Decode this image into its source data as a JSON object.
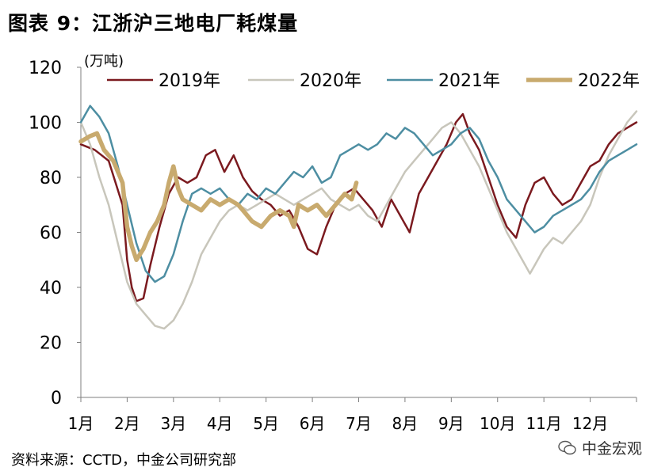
{
  "header": {
    "title": "图表 9：江浙沪三地电厂耗煤量"
  },
  "footer": {
    "source": "资料来源：CCTD，中金公司研究部",
    "watermark": "中金宏观"
  },
  "chart_data": {
    "type": "line",
    "title": "图表 9：江浙沪三地电厂耗煤量",
    "unit_label": "(万吨)",
    "xlabel": "",
    "ylabel": "",
    "ylim": [
      0,
      120
    ],
    "yticks": [
      0,
      20,
      40,
      60,
      80,
      100,
      120
    ],
    "categories": [
      "1月",
      "2月",
      "3月",
      "4月",
      "5月",
      "6月",
      "7月",
      "8月",
      "9月",
      "10月",
      "11月",
      "12月"
    ],
    "legend_position": "top",
    "grid": false,
    "series": [
      {
        "name": "2019年",
        "color": "#7b1a1f",
        "values": [
          [
            0,
            92
          ],
          [
            0.3,
            90
          ],
          [
            0.6,
            86
          ],
          [
            0.9,
            70
          ],
          [
            1.0,
            50
          ],
          [
            1.1,
            40
          ],
          [
            1.2,
            35
          ],
          [
            1.35,
            36
          ],
          [
            1.5,
            48
          ],
          [
            1.7,
            62
          ],
          [
            1.9,
            74
          ],
          [
            2.1,
            80
          ],
          [
            2.3,
            78
          ],
          [
            2.5,
            80
          ],
          [
            2.7,
            88
          ],
          [
            2.9,
            90
          ],
          [
            3.1,
            82
          ],
          [
            3.3,
            88
          ],
          [
            3.5,
            80
          ],
          [
            3.7,
            75
          ],
          [
            3.9,
            72
          ],
          [
            4.1,
            70
          ],
          [
            4.3,
            66
          ],
          [
            4.5,
            68
          ],
          [
            4.7,
            62
          ],
          [
            4.9,
            54
          ],
          [
            5.1,
            52
          ],
          [
            5.3,
            62
          ],
          [
            5.5,
            70
          ],
          [
            5.7,
            74
          ],
          [
            5.9,
            76
          ],
          [
            6.1,
            72
          ],
          [
            6.3,
            68
          ],
          [
            6.5,
            62
          ],
          [
            6.7,
            72
          ],
          [
            6.9,
            66
          ],
          [
            7.1,
            60
          ],
          [
            7.3,
            74
          ],
          [
            7.5,
            80
          ],
          [
            7.7,
            86
          ],
          [
            7.9,
            92
          ],
          [
            8.1,
            100
          ],
          [
            8.25,
            103
          ],
          [
            8.4,
            96
          ],
          [
            8.6,
            90
          ],
          [
            8.8,
            80
          ],
          [
            9.0,
            70
          ],
          [
            9.2,
            62
          ],
          [
            9.4,
            58
          ],
          [
            9.6,
            70
          ],
          [
            9.8,
            78
          ],
          [
            10.0,
            80
          ],
          [
            10.2,
            74
          ],
          [
            10.4,
            70
          ],
          [
            10.6,
            72
          ],
          [
            10.8,
            78
          ],
          [
            11.0,
            84
          ],
          [
            11.2,
            86
          ],
          [
            11.4,
            92
          ],
          [
            11.6,
            96
          ],
          [
            11.8,
            98
          ],
          [
            12.0,
            100
          ]
        ]
      },
      {
        "name": "2020年",
        "color": "#c8c6bb",
        "values": [
          [
            0,
            100
          ],
          [
            0.2,
            92
          ],
          [
            0.4,
            80
          ],
          [
            0.6,
            70
          ],
          [
            0.8,
            56
          ],
          [
            1.0,
            42
          ],
          [
            1.2,
            34
          ],
          [
            1.4,
            30
          ],
          [
            1.6,
            26
          ],
          [
            1.8,
            25
          ],
          [
            2.0,
            28
          ],
          [
            2.2,
            34
          ],
          [
            2.4,
            42
          ],
          [
            2.6,
            52
          ],
          [
            2.8,
            58
          ],
          [
            3.0,
            64
          ],
          [
            3.2,
            68
          ],
          [
            3.4,
            70
          ],
          [
            3.6,
            68
          ],
          [
            3.8,
            70
          ],
          [
            4.0,
            72
          ],
          [
            4.2,
            74
          ],
          [
            4.4,
            72
          ],
          [
            4.6,
            70
          ],
          [
            4.8,
            72
          ],
          [
            5.0,
            74
          ],
          [
            5.2,
            76
          ],
          [
            5.4,
            72
          ],
          [
            5.6,
            70
          ],
          [
            5.8,
            68
          ],
          [
            6.0,
            70
          ],
          [
            6.2,
            66
          ],
          [
            6.4,
            64
          ],
          [
            6.6,
            70
          ],
          [
            6.8,
            76
          ],
          [
            7.0,
            82
          ],
          [
            7.2,
            86
          ],
          [
            7.4,
            90
          ],
          [
            7.6,
            94
          ],
          [
            7.8,
            98
          ],
          [
            8.0,
            100
          ],
          [
            8.2,
            96
          ],
          [
            8.4,
            90
          ],
          [
            8.6,
            84
          ],
          [
            8.8,
            76
          ],
          [
            9.0,
            68
          ],
          [
            9.2,
            60
          ],
          [
            9.4,
            54
          ],
          [
            9.6,
            48
          ],
          [
            9.7,
            45
          ],
          [
            9.8,
            48
          ],
          [
            10.0,
            54
          ],
          [
            10.2,
            58
          ],
          [
            10.4,
            56
          ],
          [
            10.6,
            60
          ],
          [
            10.8,
            64
          ],
          [
            11.0,
            70
          ],
          [
            11.2,
            80
          ],
          [
            11.4,
            88
          ],
          [
            11.6,
            94
          ],
          [
            11.8,
            100
          ],
          [
            12.0,
            104
          ]
        ]
      },
      {
        "name": "2021年",
        "color": "#4d8ea2",
        "values": [
          [
            0,
            100
          ],
          [
            0.2,
            106
          ],
          [
            0.4,
            102
          ],
          [
            0.6,
            96
          ],
          [
            0.8,
            84
          ],
          [
            1.0,
            70
          ],
          [
            1.2,
            56
          ],
          [
            1.4,
            46
          ],
          [
            1.6,
            42
          ],
          [
            1.8,
            44
          ],
          [
            2.0,
            52
          ],
          [
            2.2,
            64
          ],
          [
            2.4,
            74
          ],
          [
            2.6,
            76
          ],
          [
            2.8,
            74
          ],
          [
            3.0,
            76
          ],
          [
            3.2,
            72
          ],
          [
            3.4,
            70
          ],
          [
            3.6,
            74
          ],
          [
            3.8,
            72
          ],
          [
            4.0,
            76
          ],
          [
            4.2,
            74
          ],
          [
            4.4,
            78
          ],
          [
            4.6,
            82
          ],
          [
            4.8,
            80
          ],
          [
            5.0,
            84
          ],
          [
            5.2,
            78
          ],
          [
            5.4,
            80
          ],
          [
            5.6,
            88
          ],
          [
            5.8,
            90
          ],
          [
            6.0,
            92
          ],
          [
            6.2,
            90
          ],
          [
            6.4,
            92
          ],
          [
            6.6,
            96
          ],
          [
            6.8,
            94
          ],
          [
            7.0,
            98
          ],
          [
            7.2,
            96
          ],
          [
            7.4,
            92
          ],
          [
            7.6,
            88
          ],
          [
            7.8,
            90
          ],
          [
            8.0,
            92
          ],
          [
            8.2,
            96
          ],
          [
            8.4,
            98
          ],
          [
            8.6,
            94
          ],
          [
            8.8,
            86
          ],
          [
            9.0,
            80
          ],
          [
            9.2,
            72
          ],
          [
            9.4,
            68
          ],
          [
            9.6,
            64
          ],
          [
            9.8,
            60
          ],
          [
            10.0,
            62
          ],
          [
            10.2,
            66
          ],
          [
            10.4,
            68
          ],
          [
            10.6,
            70
          ],
          [
            10.8,
            72
          ],
          [
            11.0,
            76
          ],
          [
            11.2,
            82
          ],
          [
            11.4,
            86
          ],
          [
            11.6,
            88
          ],
          [
            11.8,
            90
          ],
          [
            12.0,
            92
          ]
        ]
      },
      {
        "name": "2022年",
        "color": "#c8aa6e",
        "values": [
          [
            0,
            93
          ],
          [
            0.2,
            95
          ],
          [
            0.35,
            96
          ],
          [
            0.5,
            90
          ],
          [
            0.7,
            86
          ],
          [
            0.9,
            78
          ],
          [
            1.0,
            62
          ],
          [
            1.1,
            55
          ],
          [
            1.2,
            50
          ],
          [
            1.35,
            54
          ],
          [
            1.5,
            60
          ],
          [
            1.65,
            64
          ],
          [
            1.8,
            70
          ],
          [
            1.9,
            78
          ],
          [
            2.0,
            84
          ],
          [
            2.1,
            76
          ],
          [
            2.2,
            72
          ],
          [
            2.4,
            70
          ],
          [
            2.6,
            68
          ],
          [
            2.8,
            72
          ],
          [
            3.0,
            70
          ],
          [
            3.2,
            72
          ],
          [
            3.4,
            70
          ],
          [
            3.5,
            68
          ],
          [
            3.7,
            64
          ],
          [
            3.9,
            62
          ],
          [
            4.1,
            66
          ],
          [
            4.3,
            68
          ],
          [
            4.5,
            66
          ],
          [
            4.6,
            62
          ],
          [
            4.7,
            70
          ],
          [
            4.9,
            68
          ],
          [
            5.1,
            70
          ],
          [
            5.3,
            66
          ],
          [
            5.5,
            70
          ],
          [
            5.7,
            74
          ],
          [
            5.85,
            72
          ],
          [
            5.95,
            78
          ]
        ]
      }
    ]
  }
}
